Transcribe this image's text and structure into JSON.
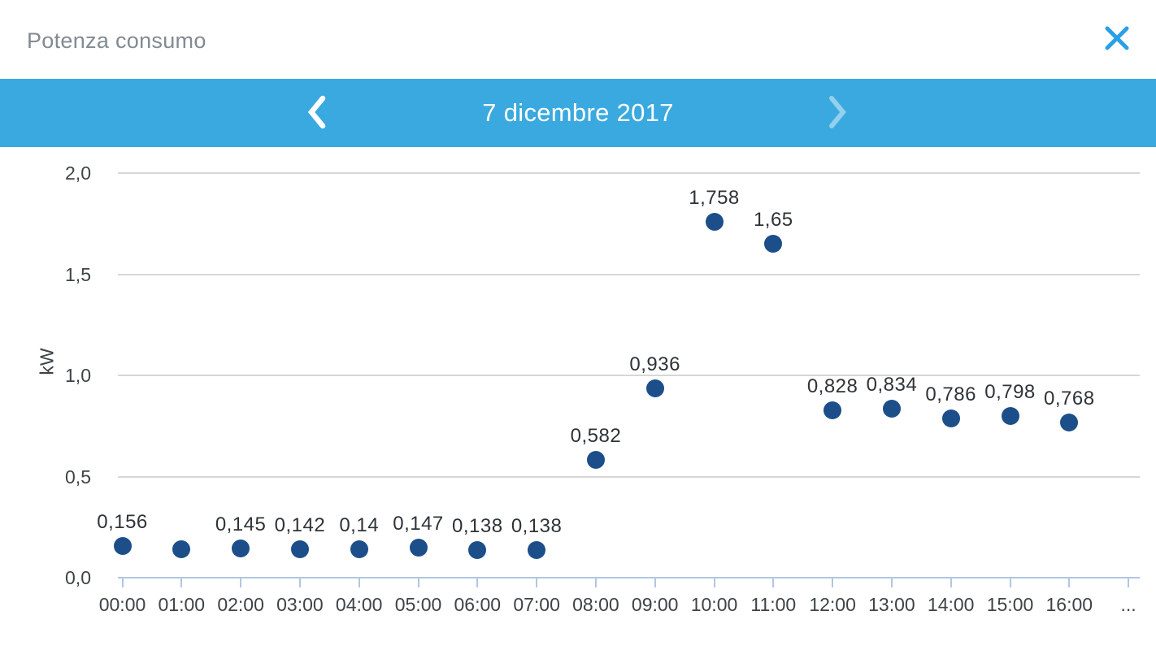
{
  "header": {
    "title": "Potenza consumo"
  },
  "nav": {
    "date": "7 dicembre 2017"
  },
  "chart_data": {
    "type": "scatter",
    "title": "Potenza consumo",
    "xlabel": "",
    "ylabel": "kW",
    "ylim": [
      0,
      2.0
    ],
    "grid": true,
    "yticks": [
      {
        "value": 0.0,
        "label": "0,0"
      },
      {
        "value": 0.5,
        "label": "0,5"
      },
      {
        "value": 1.0,
        "label": "1,0"
      },
      {
        "value": 1.5,
        "label": "1,5"
      },
      {
        "value": 2.0,
        "label": "2,0"
      }
    ],
    "x_overflow_label": "...",
    "points": [
      {
        "time": "00:00",
        "value": 0.156,
        "label": "0,156"
      },
      {
        "time": "01:00",
        "value": 0.14,
        "label": ""
      },
      {
        "time": "02:00",
        "value": 0.145,
        "label": "0,145"
      },
      {
        "time": "03:00",
        "value": 0.142,
        "label": "0,142"
      },
      {
        "time": "04:00",
        "value": 0.14,
        "label": "0,14"
      },
      {
        "time": "05:00",
        "value": 0.147,
        "label": "0,147"
      },
      {
        "time": "06:00",
        "value": 0.138,
        "label": "0,138"
      },
      {
        "time": "07:00",
        "value": 0.138,
        "label": "0,138"
      },
      {
        "time": "08:00",
        "value": 0.582,
        "label": "0,582"
      },
      {
        "time": "09:00",
        "value": 0.936,
        "label": "0,936"
      },
      {
        "time": "10:00",
        "value": 1.758,
        "label": "1,758"
      },
      {
        "time": "11:00",
        "value": 1.65,
        "label": "1,65"
      },
      {
        "time": "12:00",
        "value": 0.828,
        "label": "0,828"
      },
      {
        "time": "13:00",
        "value": 0.834,
        "label": "0,834"
      },
      {
        "time": "14:00",
        "value": 0.786,
        "label": "0,786"
      },
      {
        "time": "15:00",
        "value": 0.798,
        "label": "0,798"
      },
      {
        "time": "16:00",
        "value": 0.768,
        "label": "0,768"
      }
    ],
    "colors": {
      "point": "#1C4E8A",
      "gridline": "#D7D7D7",
      "axis_line": "#B2C6E3",
      "tick_text": "#3E4347",
      "point_label_text": "#2E3338"
    }
  },
  "colors": {
    "navbar_background": "#3AA9DF",
    "close_icon": "#29A0E5",
    "title_text": "#828A91",
    "chevron_enabled": "#FFFFFF",
    "chevron_disabled": "rgba(255,255,255,0.45)"
  }
}
